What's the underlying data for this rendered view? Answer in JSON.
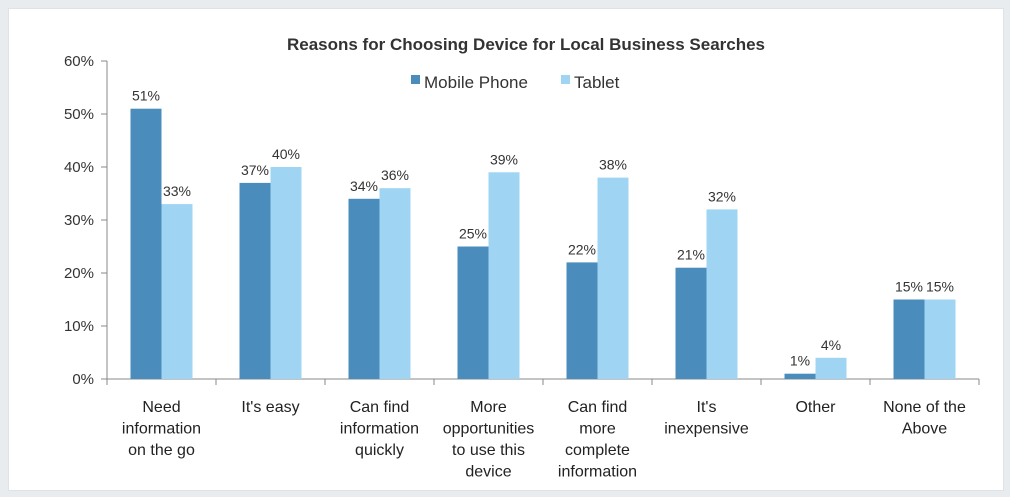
{
  "chart_data": {
    "type": "bar",
    "title": "Reasons for Choosing Device for Local Business Searches",
    "xlabel": "",
    "ylabel": "",
    "ylim": [
      0,
      60
    ],
    "yticks": [
      "0%",
      "10%",
      "20%",
      "30%",
      "40%",
      "50%",
      "60%"
    ],
    "grid": false,
    "legend_position": "top",
    "categories": [
      [
        "Need",
        "information",
        "on the go"
      ],
      [
        "It's easy"
      ],
      [
        "Can find",
        "information",
        "quickly"
      ],
      [
        "More",
        "opportunities",
        "to use this",
        "device"
      ],
      [
        "Can find",
        "more",
        "complete",
        "information"
      ],
      [
        "It's",
        "inexpensive"
      ],
      [
        "Other"
      ],
      [
        "None of the",
        "Above"
      ]
    ],
    "series": [
      {
        "name": "Mobile Phone",
        "color": "#4a8cbc",
        "values": [
          51,
          37,
          34,
          25,
          22,
          21,
          1,
          15
        ],
        "labels": [
          "51%",
          "37%",
          "34%",
          "25%",
          "22%",
          "21%",
          "1%",
          "15%"
        ]
      },
      {
        "name": "Tablet",
        "color": "#9fd4f2",
        "values": [
          33,
          40,
          36,
          39,
          38,
          32,
          4,
          15
        ],
        "labels": [
          "33%",
          "40%",
          "36%",
          "39%",
          "38%",
          "32%",
          "4%",
          "15%"
        ]
      }
    ]
  }
}
